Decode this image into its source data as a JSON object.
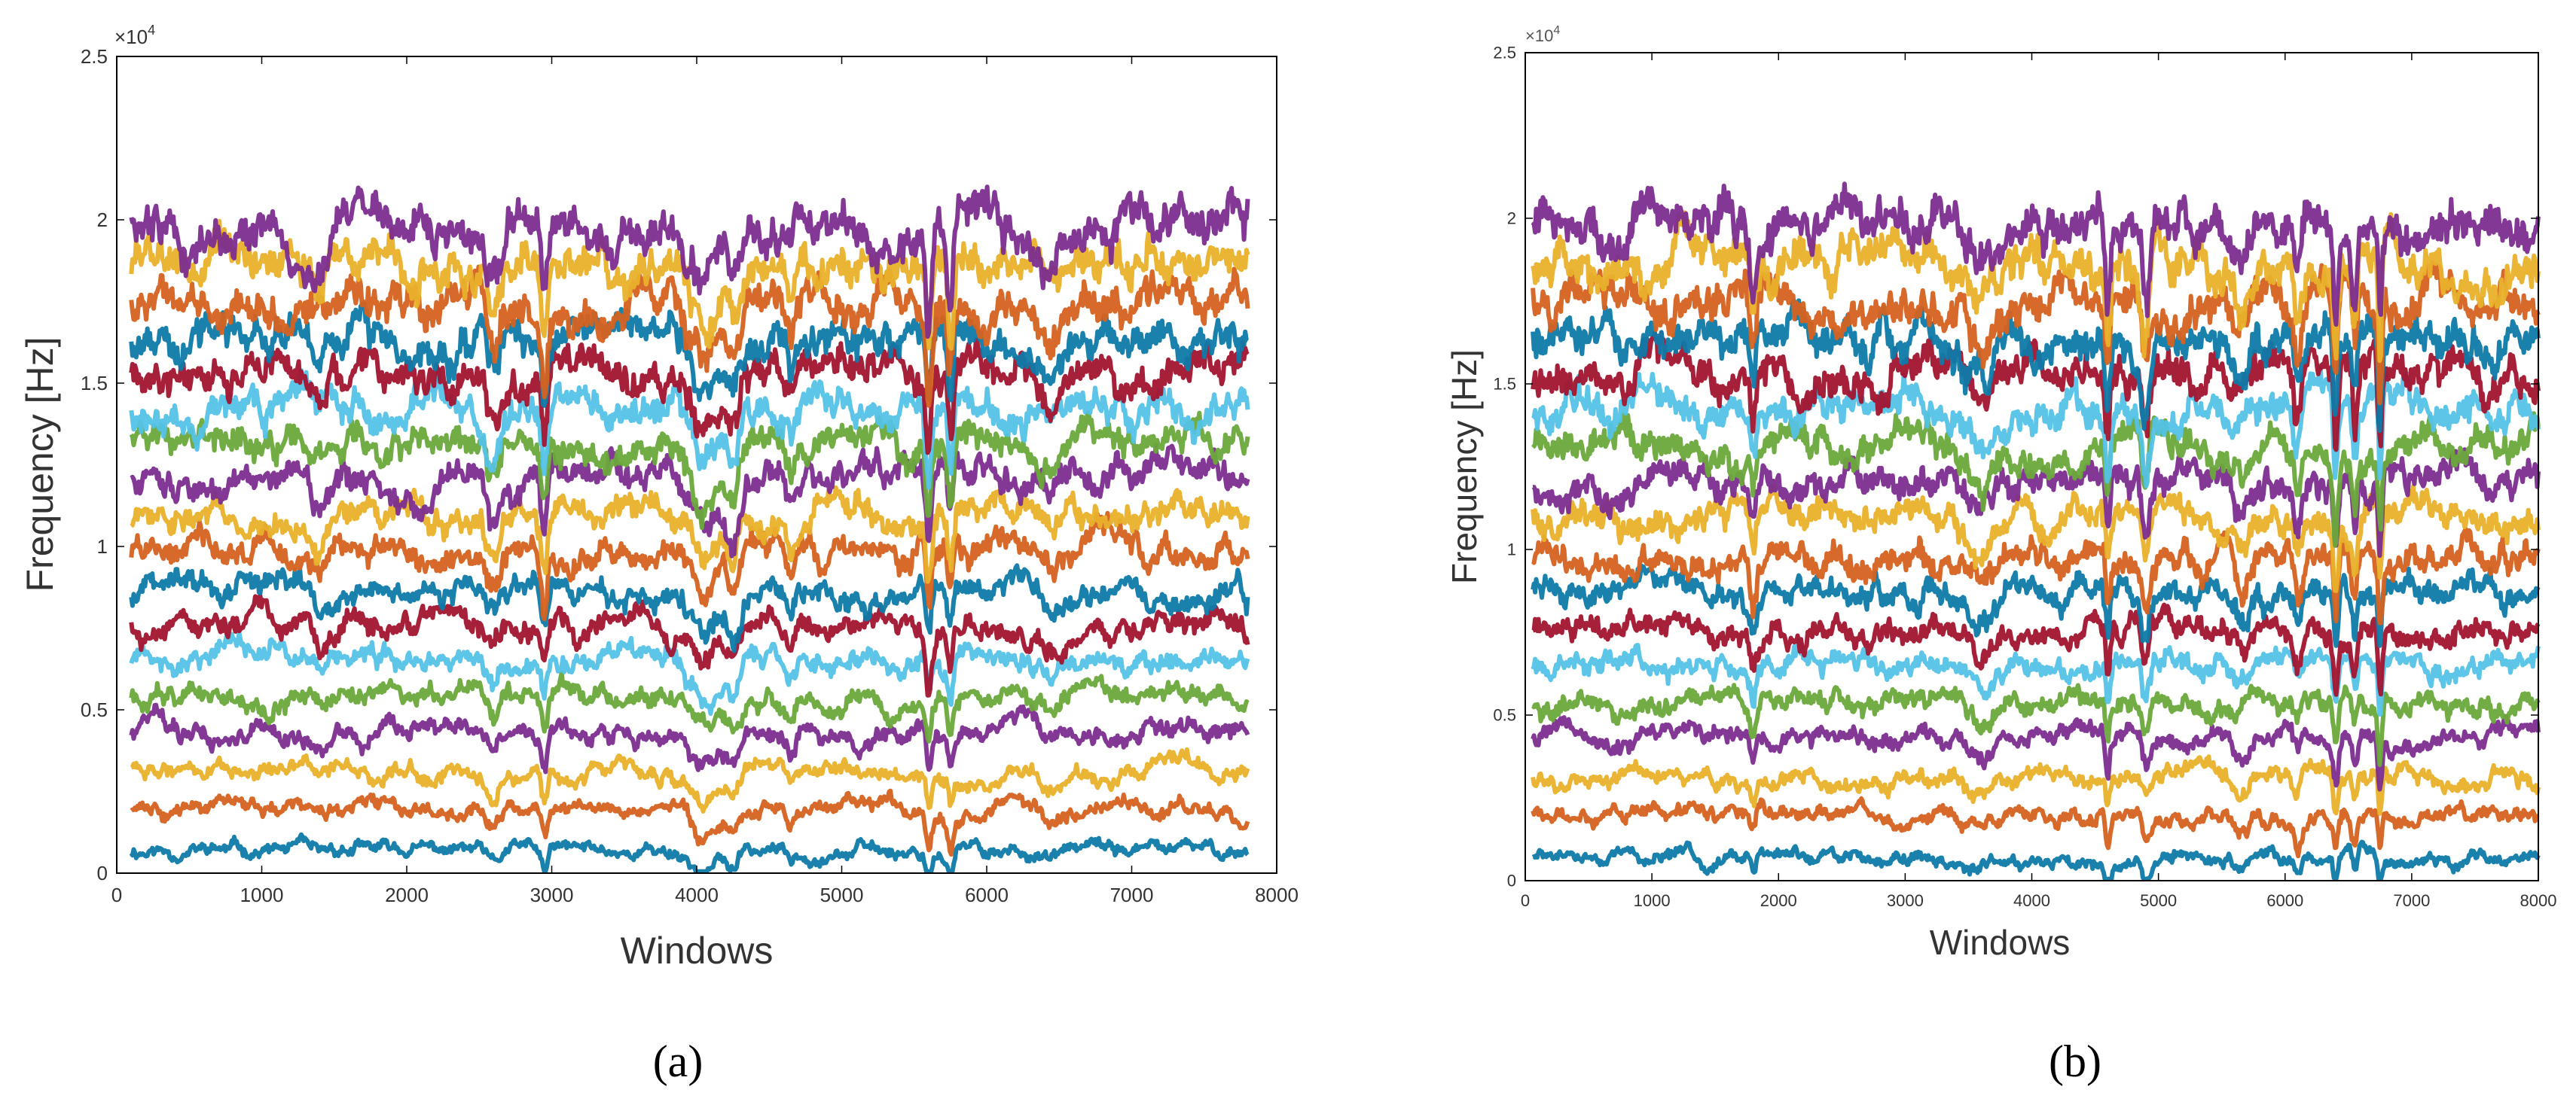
{
  "figure_labels": {
    "a": "(a)",
    "b": "(b)"
  },
  "colors": {
    "series_palette": [
      "#0e7aa8",
      "#d5621f",
      "#e9b12a",
      "#7b2d8e",
      "#6aa83b",
      "#54c2e6",
      "#a2142f"
    ],
    "axis": "#000000",
    "tick_label": "#333333"
  },
  "chart_data": [
    {
      "type": "line",
      "panel": "a",
      "title": "",
      "xlabel": "Windows",
      "ylabel": "Frequency [Hz]",
      "y_exponent_label": "×10",
      "y_exponent_power": "4",
      "xlim": [
        0,
        8000
      ],
      "ylim": [
        0,
        2.5
      ],
      "x_start": 100,
      "x_end": 7800,
      "x_ticks": [
        "0",
        "1000",
        "2000",
        "3000",
        "4000",
        "5000",
        "6000",
        "7000",
        "8000"
      ],
      "y_ticks": [
        "0",
        "0.5",
        "1",
        "1.5",
        "2",
        "2.5"
      ],
      "y_tick_values": [
        0,
        0.5,
        1,
        1.5,
        2,
        2.5
      ],
      "x_tick_values": [
        0,
        1000,
        2000,
        3000,
        4000,
        5000,
        6000,
        7000,
        8000
      ],
      "series_levels": [
        0.07,
        0.2,
        0.31,
        0.43,
        0.54,
        0.65,
        0.76,
        0.87,
        0.98,
        1.09,
        1.2,
        1.31,
        1.42,
        1.53,
        1.64,
        1.75,
        1.86,
        1.97
      ],
      "dips": [
        {
          "x": 1400,
          "depth": 0.05,
          "width": 70
        },
        {
          "x": 2600,
          "depth": 0.1,
          "width": 60
        },
        {
          "x": 2950,
          "depth": 0.14,
          "width": 30
        },
        {
          "x": 4050,
          "depth": 0.12,
          "width": 120
        },
        {
          "x": 4250,
          "depth": 0.1,
          "width": 60
        },
        {
          "x": 4650,
          "depth": 0.07,
          "width": 40
        },
        {
          "x": 5600,
          "depth": 0.16,
          "width": 25
        },
        {
          "x": 5750,
          "depth": 0.14,
          "width": 25
        },
        {
          "x": 6450,
          "depth": 0.05,
          "width": 80
        }
      ]
    },
    {
      "type": "line",
      "panel": "b",
      "title": "",
      "xlabel": "Windows",
      "ylabel": "Frequency [Hz]",
      "y_exponent_label": "×10",
      "y_exponent_power": "4",
      "xlim": [
        0,
        8000
      ],
      "ylim": [
        0,
        2.5
      ],
      "x_start": 60,
      "x_end": 8000,
      "x_ticks": [
        "0",
        "1000",
        "2000",
        "3000",
        "4000",
        "5000",
        "6000",
        "7000",
        "8000"
      ],
      "y_ticks": [
        "0",
        "0.5",
        "1",
        "1.5",
        "2",
        "2.5"
      ],
      "y_tick_values": [
        0,
        0.5,
        1,
        1.5,
        2,
        2.5
      ],
      "x_tick_values": [
        0,
        1000,
        2000,
        3000,
        4000,
        5000,
        6000,
        7000,
        8000
      ],
      "series_levels": [
        0.07,
        0.2,
        0.31,
        0.43,
        0.54,
        0.65,
        0.76,
        0.87,
        0.98,
        1.09,
        1.2,
        1.31,
        1.42,
        1.53,
        1.64,
        1.75,
        1.86,
        1.97
      ],
      "dips": [
        {
          "x": 1800,
          "depth": 0.1,
          "width": 30
        },
        {
          "x": 3600,
          "depth": 0.08,
          "width": 150
        },
        {
          "x": 4600,
          "depth": 0.14,
          "width": 25
        },
        {
          "x": 4900,
          "depth": 0.12,
          "width": 40
        },
        {
          "x": 5650,
          "depth": 0.07,
          "width": 80
        },
        {
          "x": 6100,
          "depth": 0.1,
          "width": 40
        },
        {
          "x": 6400,
          "depth": 0.16,
          "width": 25
        },
        {
          "x": 6550,
          "depth": 0.12,
          "width": 25
        },
        {
          "x": 6750,
          "depth": 0.18,
          "width": 20
        }
      ]
    }
  ]
}
